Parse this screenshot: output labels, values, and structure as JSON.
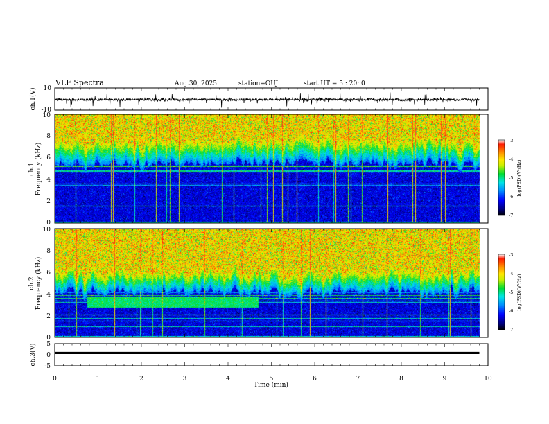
{
  "header": {
    "title": "VLF Spectra",
    "date": "Aug.30, 2025",
    "station": "station=OUJ",
    "start_ut": "start UT =  5 : 20: 0"
  },
  "chart_data": [
    {
      "id": "ch1_waveform",
      "type": "line",
      "ylabel": "ch.1(V)",
      "ylim": [
        -10,
        10
      ],
      "yticks": [
        "10",
        "-10"
      ],
      "xlim": [
        0,
        10
      ],
      "description_values": {
        "baseline": -0.5,
        "noise_amplitude": 1.5,
        "end_min": 9.8
      }
    },
    {
      "id": "ch1_spectrogram",
      "type": "heatmap",
      "ylabel": "ch.1\nFrequency (kHz)",
      "ylabel_lines": [
        "ch.1",
        "Frequency (kHz)"
      ],
      "ylim": [
        0,
        10
      ],
      "yticks": [
        "0",
        "2",
        "4",
        "6",
        "8",
        "10"
      ],
      "xlim": [
        0,
        10
      ],
      "data_end_min": 9.8,
      "band_edges_khz": {
        "low_noise_top": 5.5,
        "transition_top": 7.5
      },
      "colorbar": {
        "label": "log(PSD)(V²/Hz)",
        "range": [
          -7,
          -3
        ],
        "ticks": [
          "-3",
          "-4",
          "-5",
          "-6",
          "-7"
        ]
      }
    },
    {
      "id": "ch2_spectrogram",
      "type": "heatmap",
      "ylabel": "ch.2\nFrequency (kHz)",
      "ylabel_lines": [
        "ch.2",
        "Frequency (kHz)"
      ],
      "ylim": [
        0,
        10
      ],
      "yticks": [
        "0",
        "2",
        "4",
        "6",
        "8",
        "10"
      ],
      "xlim": [
        0,
        10
      ],
      "data_end_min": 9.8,
      "band_edges_khz": {
        "low_noise_top": 4.2,
        "transition_top": 6.0
      },
      "enhanced_band": {
        "t_start_min": 0.75,
        "t_end_min": 4.7,
        "f_low_khz": 2.8,
        "f_high_khz": 3.8
      },
      "colorbar": {
        "label": "log(PSD)(V²/Hz)",
        "range": [
          -7,
          -3
        ],
        "ticks": [
          "-3",
          "-4",
          "-5",
          "-6",
          "-7"
        ]
      }
    },
    {
      "id": "ch3_waveform",
      "type": "line",
      "ylabel": "ch.3(V)",
      "ylim": [
        -5,
        5
      ],
      "yticks": [
        "5",
        "0",
        "-5"
      ],
      "xlim": [
        0,
        10
      ],
      "description_values": {
        "baseline": 0.8,
        "end_min": 9.8
      }
    }
  ],
  "xaxis": {
    "label": "Time (min)",
    "ticks": [
      "0",
      "1",
      "2",
      "3",
      "4",
      "5",
      "6",
      "7",
      "8",
      "9",
      "10"
    ]
  },
  "colors": {
    "low": "#00008b",
    "mid": "#00cc44",
    "high": "#ff2a00",
    "trace": "#000000"
  }
}
